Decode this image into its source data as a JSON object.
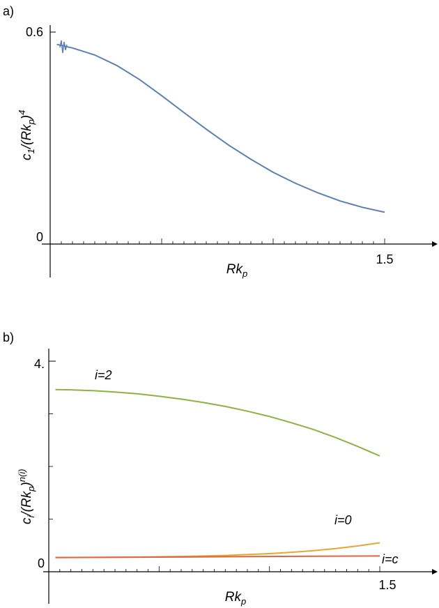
{
  "chart_data": [
    {
      "type": "line",
      "panel_label": "a)",
      "xlabel_main": "Rk",
      "xlabel_sub": "p",
      "ylabel_main": "c",
      "ylabel_sub1": "1",
      "ylabel_mid": "/(Rk",
      "ylabel_sub2": "p",
      "ylabel_end": ")",
      "ylabel_sup": "4",
      "xlim": [
        0,
        1.5
      ],
      "ylim": [
        0,
        0.6
      ],
      "x_tick_label": "1.5",
      "y_tick_labels": [
        "0",
        "0.6"
      ],
      "series": [
        {
          "color": "#5b7fb5",
          "x": [
            0.03,
            0.1,
            0.2,
            0.3,
            0.4,
            0.5,
            0.6,
            0.7,
            0.8,
            0.9,
            1.0,
            1.1,
            1.2,
            1.3,
            1.4,
            1.5
          ],
          "y": [
            0.565,
            0.555,
            0.535,
            0.505,
            0.466,
            0.42,
            0.372,
            0.325,
            0.28,
            0.24,
            0.203,
            0.172,
            0.145,
            0.122,
            0.104,
            0.09
          ]
        }
      ]
    },
    {
      "type": "line",
      "panel_label": "b)",
      "xlabel_main": "Rk",
      "xlabel_sub": "p",
      "ylabel_main": "c",
      "ylabel_sub1": "i",
      "ylabel_mid": "/(Rk",
      "ylabel_sub2": "p",
      "ylabel_end": ")",
      "ylabel_sup": "n(i)",
      "xlim": [
        0,
        1.5
      ],
      "ylim": [
        0,
        4
      ],
      "x_tick_label": "1.5",
      "y_tick_labels": [
        "0",
        "4."
      ],
      "series": [
        {
          "name": "i=2",
          "color": "#8db33f",
          "x": [
            0.03,
            0.1,
            0.2,
            0.3,
            0.4,
            0.5,
            0.6,
            0.7,
            0.8,
            0.9,
            1.0,
            1.1,
            1.2,
            1.3,
            1.4,
            1.5
          ],
          "y": [
            3.46,
            3.455,
            3.44,
            3.415,
            3.38,
            3.335,
            3.28,
            3.215,
            3.14,
            3.05,
            2.95,
            2.83,
            2.7,
            2.55,
            2.38,
            2.2
          ]
        },
        {
          "name": "i=0",
          "color": "#e9a530",
          "x": [
            0.03,
            0.2,
            0.4,
            0.6,
            0.8,
            1.0,
            1.1,
            1.2,
            1.3,
            1.4,
            1.5
          ],
          "y": [
            0.27,
            0.272,
            0.278,
            0.29,
            0.31,
            0.345,
            0.37,
            0.4,
            0.44,
            0.49,
            0.55
          ]
        },
        {
          "name": "i=c",
          "color": "#e2643a",
          "x": [
            0.03,
            0.3,
            0.6,
            0.9,
            1.2,
            1.5
          ],
          "y": [
            0.27,
            0.274,
            0.28,
            0.287,
            0.294,
            0.3
          ]
        }
      ]
    }
  ]
}
